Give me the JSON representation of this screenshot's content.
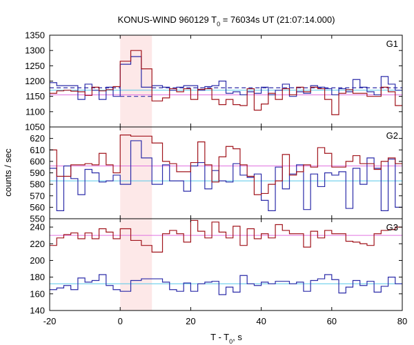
{
  "chart_data": {
    "type": "line",
    "title_parts": [
      "KONUS-WIND 960129 T",
      "0",
      " = 76034s UT (21:07:14.000)"
    ],
    "xlabel_parts": [
      "T - T",
      "0",
      ", s"
    ],
    "ylabel": "counts / sec",
    "x_range": [
      -20,
      80
    ],
    "x_ticks": [
      "-20",
      "0",
      "20",
      "40",
      "60",
      "80"
    ],
    "highlight_interval": [
      0,
      9
    ],
    "colors": {
      "red_series": "#a0121a",
      "blue_series": "#2a2aa8",
      "red_background": "#e070e0",
      "blue_background": "#55c8e8",
      "highlight": "#fde8e8",
      "dashed": "#2a2aa8"
    },
    "panels": [
      {
        "name": "G1",
        "ylim": [
          1050,
          1350
        ],
        "y_ticks": [
          "1050",
          "1100",
          "1150",
          "1200",
          "1250",
          "1300",
          "1350"
        ],
        "x_edges": [
          -20,
          -18,
          -16,
          -14,
          -12,
          -10,
          -8,
          -6,
          -4,
          -2,
          0,
          3,
          6,
          9,
          12,
          14,
          16,
          18,
          20,
          22,
          24,
          26,
          28,
          30,
          32,
          34,
          36,
          38,
          40,
          42,
          44,
          46,
          48,
          50,
          52,
          54,
          56,
          58,
          60,
          62,
          64,
          66,
          68,
          70,
          72,
          74,
          76,
          78,
          80
        ],
        "series": [
          {
            "role": "red_series",
            "values": [
              1160,
              1168,
              1170,
              1167,
              1165,
              1153,
              1180,
              1168,
              1172,
              1182,
              1265,
              1300,
              1240,
              1135,
              1145,
              1175,
              1165,
              1175,
              1140,
              1173,
              1175,
              1140,
              1123,
              1140,
              1123,
              1120,
              1175,
              1105,
              1125,
              1160,
              1140,
              1175,
              1155,
              1180,
              1165,
              1180,
              1175,
              1140,
              1090,
              1160,
              1172,
              1160,
              1160,
              1150,
              1150,
              1180,
              1165,
              1120
            ]
          },
          {
            "role": "blue_series",
            "values": [
              1195,
              1185,
              1185,
              1185,
              1140,
              1190,
              1170,
              1140,
              1180,
              1150,
              1255,
              1280,
              1180,
              1185,
              1180,
              1170,
              1180,
              1185,
              1185,
              1170,
              1182,
              1185,
              1200,
              1160,
              1165,
              1155,
              1165,
              1160,
              1180,
              1155,
              1170,
              1190,
              1150,
              1165,
              1160,
              1185,
              1180,
              1175,
              1155,
              1175,
              1165,
              1205,
              1180,
              1165,
              1155,
              1215,
              1190,
              1170
            ]
          }
        ],
        "background_levels": [
          {
            "role": "red_background",
            "value": 1155
          },
          {
            "role": "blue_background",
            "value": 1170
          }
        ],
        "dashed_levels": [
          {
            "role": "dashed",
            "value": 1178,
            "x_range": [
              -20,
              0
            ]
          },
          {
            "role": "dashed",
            "value": 1150,
            "x_range": [
              0,
              9
            ]
          },
          {
            "role": "dashed",
            "value": 1178,
            "x_range": [
              9,
              80
            ]
          }
        ]
      },
      {
        "name": "G2",
        "ylim": [
          550,
          630
        ],
        "y_ticks": [
          "550",
          "560",
          "570",
          "580",
          "590",
          "600",
          "610",
          "620"
        ],
        "x_edges": [
          -20,
          -18,
          -16,
          -14,
          -12,
          -10,
          -8,
          -6,
          -4,
          -2,
          0,
          3,
          6,
          9,
          12,
          14,
          16,
          18,
          20,
          22,
          24,
          26,
          28,
          30,
          32,
          34,
          36,
          38,
          40,
          42,
          44,
          46,
          48,
          50,
          52,
          54,
          56,
          58,
          60,
          62,
          64,
          66,
          68,
          70,
          72,
          74,
          76,
          78,
          80
        ],
        "series": [
          {
            "role": "red_series",
            "values": [
              610,
              587,
              587,
              597,
              597,
              598,
              597,
              607,
              597,
              590,
              623,
              622,
              622,
              616,
              600,
              598,
              591,
              591,
              599,
              617,
              597,
              582,
              604,
              613,
              611,
              597,
              587,
              571,
              572,
              580,
              583,
              606,
              588,
              591,
              597,
              595,
              612,
              607,
              595,
              595,
              600,
              605,
              598,
              598,
              593,
              600,
              603,
              598
            ]
          },
          {
            "role": "blue_series",
            "values": [
              594,
              557,
              596,
              585,
              571,
              593,
              590,
              582,
              583,
              588,
              580,
              618,
              603,
              580,
              597,
              583,
              583,
              574,
              596,
              599,
              576,
              592,
              583,
              582,
              598,
              588,
              586,
              589,
              566,
              557,
              595,
              576,
              589,
              597,
              558,
              589,
              578,
              590,
              588,
              591,
              559,
              594,
              580,
              603,
              594,
              557,
              602,
              560
            ]
          }
        ],
        "background_levels": [
          {
            "role": "red_background",
            "value": 596
          },
          {
            "role": "blue_background",
            "value": 583
          }
        ],
        "dashed_levels": []
      },
      {
        "name": "G3",
        "ylim": [
          140,
          250
        ],
        "y_ticks": [
          "140",
          "160",
          "180",
          "200",
          "220",
          "240"
        ],
        "x_edges": [
          -20,
          -18,
          -16,
          -14,
          -12,
          -10,
          -8,
          -6,
          -4,
          -2,
          0,
          3,
          6,
          9,
          12,
          14,
          16,
          18,
          20,
          22,
          24,
          26,
          28,
          30,
          32,
          34,
          36,
          38,
          40,
          42,
          44,
          46,
          48,
          50,
          52,
          54,
          56,
          58,
          60,
          62,
          64,
          66,
          68,
          70,
          72,
          74,
          76,
          78,
          80
        ],
        "series": [
          {
            "role": "red_series",
            "values": [
              218,
              227,
              231,
              233,
              226,
              233,
              226,
              238,
              234,
              226,
              238,
              224,
              218,
              210,
              232,
              236,
              232,
              222,
              248,
              235,
              227,
              246,
              234,
              227,
              241,
              218,
              238,
              226,
              232,
              227,
              243,
              236,
              232,
              232,
              216,
              235,
              227,
              236,
              232,
              232,
              223,
              222,
              220,
              218,
              232,
              236,
              237,
              240
            ]
          },
          {
            "role": "blue_series",
            "values": [
              165,
              167,
              170,
              165,
              179,
              174,
              176,
              183,
              170,
              165,
              163,
              176,
              178,
              178,
              174,
              165,
              163,
              173,
              163,
              172,
              174,
              175,
              159,
              168,
              162,
              182,
              172,
              170,
              174,
              172,
              175,
              175,
              172,
              174,
              163,
              176,
              178,
              183,
              177,
              161,
              168,
              176,
              170,
              175,
              162,
              169,
              180,
              172
            ]
          }
        ],
        "background_levels": [
          {
            "role": "red_background",
            "value": 230
          },
          {
            "role": "blue_background",
            "value": 172
          }
        ],
        "dashed_levels": []
      }
    ]
  }
}
